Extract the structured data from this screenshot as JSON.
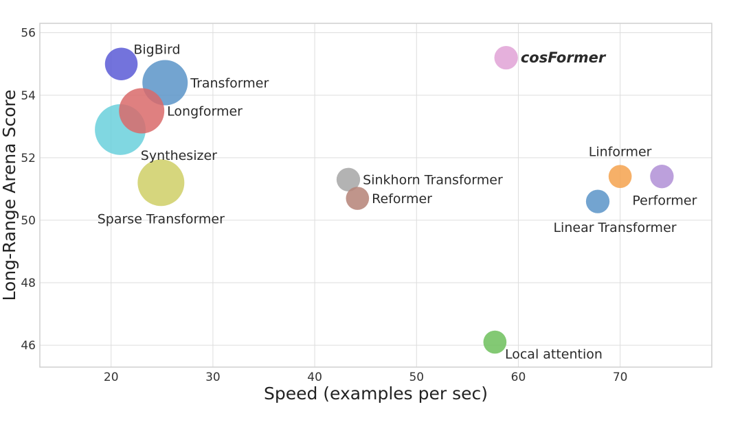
{
  "chart_data": {
    "type": "scatter",
    "xlabel": "Speed (examples per sec)",
    "ylabel": "Long-Range Arena Score",
    "xlim": [
      13,
      79
    ],
    "ylim": [
      45.3,
      56.3
    ],
    "x_ticks": [
      20,
      30,
      40,
      50,
      60,
      70
    ],
    "y_ticks": [
      46,
      48,
      50,
      52,
      54,
      56
    ],
    "grid": true,
    "points": [
      {
        "label": "BigBird",
        "x": 21.0,
        "y": 55.0,
        "color": "#5b5bd6",
        "label_pos": "upper-right",
        "highlight": false
      },
      {
        "label": "Transformer",
        "x": 25.3,
        "y": 54.4,
        "color": "#5b94c8",
        "label_pos": "right",
        "highlight": false
      },
      {
        "label": "Longformer",
        "x": 23.0,
        "y": 53.5,
        "color": "#d96a6a",
        "label_pos": "right",
        "highlight": false
      },
      {
        "label": "Synthesizer",
        "x": 20.9,
        "y": 52.9,
        "color": "#6ad0dc",
        "label_pos": "lower-right",
        "highlight": false
      },
      {
        "label": "Sparse Transformer",
        "x": 24.9,
        "y": 51.2,
        "color": "#cfcf66",
        "label_pos": "below",
        "highlight": false
      },
      {
        "label": "Sinkhorn Transformer",
        "x": 43.3,
        "y": 51.3,
        "color": "#a6a6a6",
        "label_pos": "right",
        "highlight": false
      },
      {
        "label": "Reformer",
        "x": 44.2,
        "y": 50.7,
        "color": "#b58377",
        "label_pos": "right",
        "highlight": false
      },
      {
        "label": "cosFormer",
        "x": 58.8,
        "y": 55.2,
        "color": "#e0a2d6",
        "label_pos": "right",
        "highlight": true,
        "label_color": "#c0392b"
      },
      {
        "label": "Linformer",
        "x": 70.0,
        "y": 51.4,
        "color": "#f5a24e",
        "label_pos": "above",
        "highlight": false
      },
      {
        "label": "Performer",
        "x": 74.1,
        "y": 51.4,
        "color": "#b08fd6",
        "label_pos": "below",
        "highlight": false
      },
      {
        "label": "Linear Transformer",
        "x": 67.8,
        "y": 50.6,
        "color": "#5b94c8",
        "label_pos": "below",
        "highlight": false
      },
      {
        "label": "Local attention",
        "x": 57.7,
        "y": 46.1,
        "color": "#6dbf5c",
        "label_pos": "lower-right",
        "highlight": false
      }
    ],
    "memory": {
      "note": "bubble size encodes relative memory footprint (values read from marker size)",
      "BigBird": 0.72,
      "Transformer": 1.0,
      "Longformer": 1.0,
      "Synthesizer": 1.12,
      "Sparse Transformer": 1.03,
      "Sinkhorn Transformer": 0.52,
      "Reformer": 0.51,
      "cosFormer": 0.52,
      "Linformer": 0.51,
      "Performer": 0.52,
      "Linear Transformer": 0.52,
      "Local attention": 0.51
    }
  }
}
